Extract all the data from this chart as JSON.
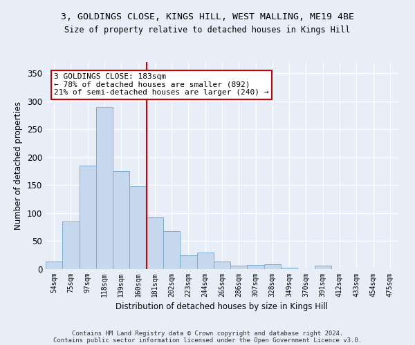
{
  "title": "3, GOLDINGS CLOSE, KINGS HILL, WEST MALLING, ME19 4BE",
  "subtitle": "Size of property relative to detached houses in Kings Hill",
  "xlabel": "Distribution of detached houses by size in Kings Hill",
  "ylabel": "Number of detached properties",
  "bar_color": "#c5d8ed",
  "bar_edge_color": "#7aadd4",
  "background_color": "#e8eef8",
  "grid_color": "#ffffff",
  "categories": [
    "54sqm",
    "75sqm",
    "97sqm",
    "118sqm",
    "139sqm",
    "160sqm",
    "181sqm",
    "202sqm",
    "223sqm",
    "244sqm",
    "265sqm",
    "286sqm",
    "307sqm",
    "328sqm",
    "349sqm",
    "370sqm",
    "391sqm",
    "412sqm",
    "433sqm",
    "454sqm",
    "475sqm"
  ],
  "values": [
    13,
    85,
    185,
    290,
    175,
    148,
    93,
    68,
    25,
    30,
    14,
    6,
    7,
    9,
    3,
    0,
    6,
    0,
    0,
    0,
    0
  ],
  "ylim": [
    0,
    370
  ],
  "yticks": [
    0,
    50,
    100,
    150,
    200,
    250,
    300,
    350
  ],
  "annotation_text": "3 GOLDINGS CLOSE: 183sqm\n← 78% of detached houses are smaller (892)\n21% of semi-detached houses are larger (240) →",
  "annotation_box_color": "#ffffff",
  "annotation_box_edge_color": "#cc0000",
  "vline_color": "#cc0000",
  "footer_line1": "Contains HM Land Registry data © Crown copyright and database right 2024.",
  "footer_line2": "Contains public sector information licensed under the Open Government Licence v3.0.",
  "figsize": [
    6.0,
    5.0
  ],
  "dpi": 100
}
